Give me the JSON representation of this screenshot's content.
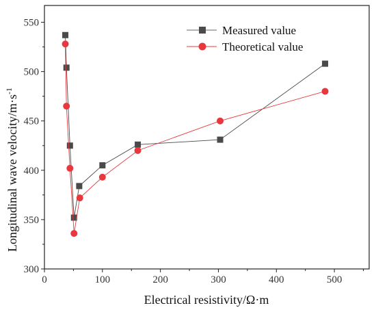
{
  "chart_data": {
    "type": "line",
    "title": "",
    "xlabel": "Electrical resistivity/Ω·m",
    "ylabel": "Longitudinal wave velocity/m·s",
    "ylabel_superscript": "-1",
    "xlim": [
      0,
      560
    ],
    "ylim": [
      300,
      567
    ],
    "xticks": [
      0,
      100,
      200,
      300,
      400,
      500
    ],
    "yticks": [
      300,
      350,
      400,
      450,
      500,
      550
    ],
    "grid": false,
    "legend_position": "top-right",
    "series": [
      {
        "name": "Measured value",
        "marker": "square",
        "color": "#4a4a4a",
        "points": [
          {
            "x": 36,
            "y": 537
          },
          {
            "x": 38,
            "y": 504
          },
          {
            "x": 44,
            "y": 425
          },
          {
            "x": 51,
            "y": 352
          },
          {
            "x": 60,
            "y": 384
          },
          {
            "x": 100,
            "y": 405
          },
          {
            "x": 161,
            "y": 426
          },
          {
            "x": 303,
            "y": 431
          },
          {
            "x": 484,
            "y": 508
          }
        ]
      },
      {
        "name": "Theoretical value",
        "marker": "circle",
        "color": "#e8383d",
        "points": [
          {
            "x": 36,
            "y": 528
          },
          {
            "x": 38,
            "y": 465
          },
          {
            "x": 44,
            "y": 402
          },
          {
            "x": 51,
            "y": 336
          },
          {
            "x": 61,
            "y": 372
          },
          {
            "x": 100,
            "y": 393
          },
          {
            "x": 161,
            "y": 420
          },
          {
            "x": 303,
            "y": 450
          },
          {
            "x": 484,
            "y": 480
          }
        ]
      }
    ]
  }
}
